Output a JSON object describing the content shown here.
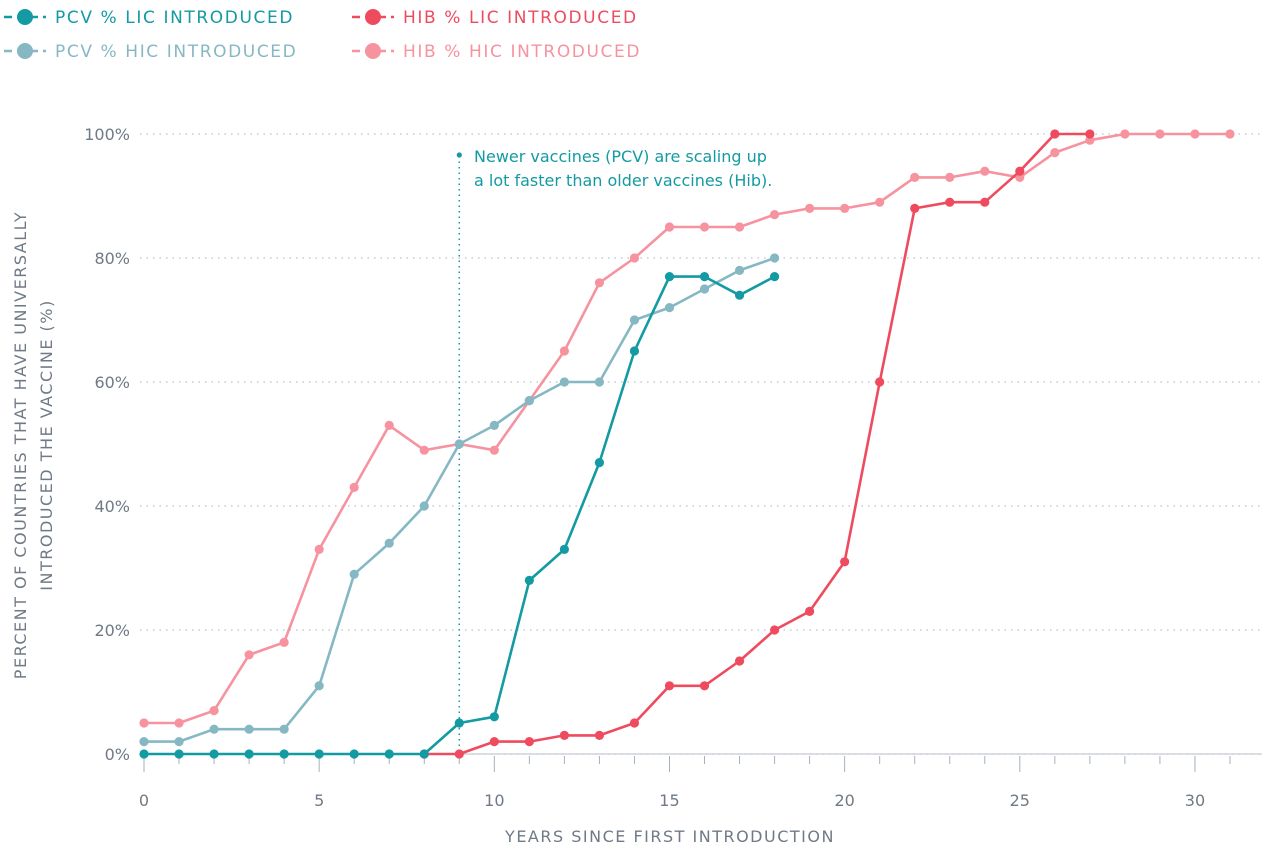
{
  "chart_data": {
    "type": "line",
    "xlabel": "YEARS SINCE FIRST INTRODUCTION",
    "ylabel_lines": [
      "PERCENT OF COUNTRIES THAT HAVE UNIVERSALLY",
      "INTRODUCED THE VACCINE (%)"
    ],
    "xlim": [
      0,
      31
    ],
    "ylim": [
      0,
      100
    ],
    "x_ticks": [
      0,
      5,
      10,
      15,
      20,
      25,
      30
    ],
    "y_ticks": [
      0,
      20,
      40,
      60,
      80,
      100
    ],
    "y_tick_labels": [
      "0%",
      "20%",
      "40%",
      "60%",
      "80%",
      "100%"
    ],
    "grid": "horizontal dotted",
    "legend_placement": "top-left",
    "annotation": {
      "x": 9,
      "lines": [
        "Newer vaccines (PCV) are scaling up",
        "a lot faster than older vaccines (Hib)."
      ],
      "color": "#139aa2"
    },
    "series": [
      {
        "name": "PCV % LIC INTRODUCED",
        "color": "#139aa2",
        "x": [
          0,
          1,
          2,
          3,
          4,
          5,
          6,
          7,
          8,
          9,
          10,
          11,
          12,
          13,
          14,
          15,
          16,
          17,
          18
        ],
        "values": [
          0,
          0,
          0,
          0,
          0,
          0,
          0,
          0,
          0,
          5,
          6,
          28,
          33,
          47,
          65,
          77,
          77,
          74,
          77
        ]
      },
      {
        "name": "PCV % HIC INTRODUCED",
        "color": "#86b8c3",
        "x": [
          0,
          1,
          2,
          3,
          4,
          5,
          6,
          7,
          8,
          9,
          10,
          11,
          12,
          13,
          14,
          15,
          16,
          17,
          18
        ],
        "values": [
          2,
          2,
          4,
          4,
          4,
          11,
          29,
          34,
          40,
          50,
          53,
          57,
          60,
          60,
          70,
          72,
          75,
          78,
          80
        ]
      },
      {
        "name": "HIB % LIC INTRODUCED",
        "color": "#ef4b5f",
        "x": [
          8,
          9,
          10,
          11,
          12,
          13,
          14,
          15,
          16,
          17,
          18,
          19,
          20,
          21,
          22,
          23,
          24,
          25,
          26,
          27
        ],
        "values": [
          0,
          0,
          2,
          2,
          3,
          3,
          5,
          11,
          11,
          15,
          20,
          23,
          31,
          60,
          88,
          89,
          89,
          94,
          100,
          100
        ]
      },
      {
        "name": "HIB % HIC INTRODUCED",
        "color": "#f6939f",
        "x": [
          0,
          1,
          2,
          3,
          4,
          5,
          6,
          7,
          8,
          9,
          10,
          11,
          12,
          13,
          14,
          15,
          16,
          17,
          18,
          19,
          20,
          21,
          22,
          23,
          24,
          25,
          26,
          27,
          28,
          29,
          30,
          31
        ],
        "values": [
          5,
          5,
          7,
          16,
          18,
          33,
          43,
          53,
          49,
          50,
          49,
          57,
          65,
          76,
          80,
          85,
          85,
          85,
          87,
          88,
          88,
          89,
          93,
          93,
          94,
          93,
          97,
          99,
          100,
          100,
          100,
          100
        ]
      }
    ]
  }
}
